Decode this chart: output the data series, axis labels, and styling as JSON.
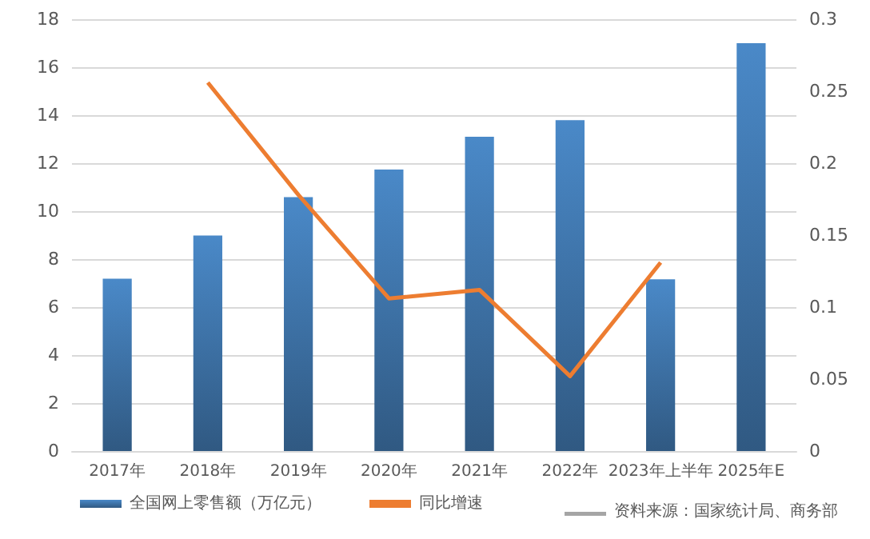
{
  "chart_data": {
    "type": "bar",
    "categories": [
      "2017年",
      "2018年",
      "2019年",
      "2020年",
      "2021年",
      "2022年",
      "2023年上半年",
      "2025年E"
    ],
    "series": [
      {
        "name": "全国网上零售额（万亿元）",
        "color": "#4a89c8",
        "values": [
          7.18,
          8.98,
          10.58,
          11.73,
          13.1,
          13.79,
          7.16,
          17.0
        ]
      },
      {
        "name": "同比增速",
        "type": "line",
        "axis": "y2",
        "color": "#ed7d31",
        "values": [
          null,
          0.256,
          0.178,
          0.106,
          0.112,
          0.052,
          0.131,
          null
        ]
      }
    ],
    "ylim": [
      0,
      18
    ],
    "yticks": [
      0,
      2,
      4,
      6,
      8,
      10,
      12,
      14,
      16,
      18
    ],
    "y2lim": [
      0,
      0.3
    ],
    "y2ticks": [
      0,
      0.05,
      0.1,
      0.15,
      0.2,
      0.25,
      0.3
    ],
    "grid": "y",
    "legend": "bottom",
    "marker": "none",
    "annotations": [
      "资料来源：国家统计局、商务部"
    ]
  }
}
